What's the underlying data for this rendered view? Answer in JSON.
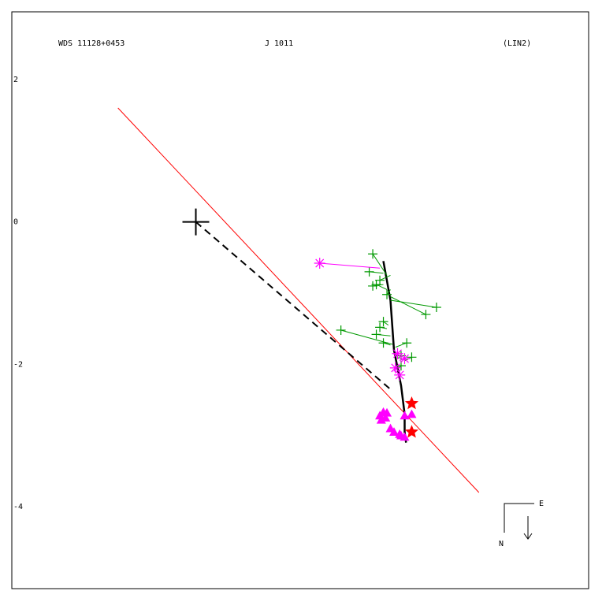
{
  "header": {
    "wds": "WDS 11128+0453",
    "disc": "J  1011",
    "ref": "(LIN2)"
  },
  "compass": {
    "east": "E",
    "north": "N"
  },
  "chart_data": {
    "type": "scatter",
    "xlim": [
      -2.6,
      5.55
    ],
    "ylim": [
      -5.15,
      2.95
    ],
    "yticks": [
      {
        "value": 2,
        "label": "2"
      },
      {
        "value": 0,
        "label": "0"
      },
      {
        "value": -2,
        "label": "-2"
      },
      {
        "value": -4,
        "label": "-4"
      }
    ],
    "primary": [
      0,
      0
    ],
    "colors": {
      "fit_line": "#ff0000",
      "orbit": "#000000",
      "micrometer": "#009900",
      "photographic": "#ff00ff",
      "speckle": "#ff00ff",
      "recent": "#ff0000",
      "frame": "#000000"
    },
    "fit_line": {
      "x": [
        -1.1,
        4.0
      ],
      "y": [
        1.6,
        -3.8
      ]
    },
    "orbit_track": {
      "x": [
        2.65,
        2.75,
        2.8,
        2.9,
        2.95,
        2.95,
        2.97
      ],
      "y": [
        -0.55,
        -1.1,
        -1.8,
        -2.3,
        -2.7,
        -2.95,
        -3.1
      ]
    },
    "node_line": {
      "x": [
        0.0,
        2.75
      ],
      "y": [
        0.0,
        -2.35
      ]
    },
    "micrometer": [
      {
        "x": [
          2.5,
          2.7
        ],
        "y": [
          -0.45,
          -0.75
        ]
      },
      {
        "x": [
          2.45,
          2.65
        ],
        "y": [
          -0.7,
          -0.72
        ]
      },
      {
        "x": [
          2.6,
          2.75
        ],
        "y": [
          -0.82,
          -0.75
        ]
      },
      {
        "x": [
          2.5,
          2.65
        ],
        "y": [
          -0.9,
          -0.88
        ]
      },
      {
        "x": [
          2.55,
          2.7
        ],
        "y": [
          -0.88,
          -0.95
        ]
      },
      {
        "x": [
          2.7,
          2.75
        ],
        "y": [
          -1.02,
          -0.95
        ]
      },
      {
        "x": [
          3.25,
          2.75
        ],
        "y": [
          -1.3,
          -1.05
        ]
      },
      {
        "x": [
          3.4,
          2.75
        ],
        "y": [
          -1.2,
          -1.1
        ]
      },
      {
        "x": [
          2.65,
          2.72
        ],
        "y": [
          -1.4,
          -1.45
        ]
      },
      {
        "x": [
          2.6,
          2.7
        ],
        "y": [
          -1.48,
          -1.5
        ]
      },
      {
        "x": [
          2.55,
          2.75
        ],
        "y": [
          -1.58,
          -1.6
        ]
      },
      {
        "x": [
          2.05,
          2.78
        ],
        "y": [
          -1.52,
          -1.72
        ]
      },
      {
        "x": [
          2.65,
          2.75
        ],
        "y": [
          -1.7,
          -1.73
        ]
      },
      {
        "x": [
          2.98,
          2.82
        ],
        "y": [
          -1.7,
          -1.76
        ]
      },
      {
        "x": [
          2.9,
          2.85
        ],
        "y": [
          -1.88,
          -1.92
        ]
      },
      {
        "x": [
          3.05,
          2.95
        ],
        "y": [
          -1.9,
          -1.95
        ]
      },
      {
        "x": [
          2.9,
          2.85
        ],
        "y": [
          -2.02,
          -2.06
        ]
      }
    ],
    "photographic": [
      {
        "x": [
          1.75,
          2.6
        ],
        "y": [
          -0.58,
          -0.65
        ]
      },
      {
        "x": [
          2.85,
          2.8
        ],
        "y": [
          -1.85,
          -1.87
        ]
      },
      {
        "x": [
          2.95,
          2.88
        ],
        "y": [
          -1.92,
          -1.95
        ]
      },
      {
        "x": [
          2.82,
          2.8
        ],
        "y": [
          -2.05,
          -2.1
        ]
      },
      {
        "x": [
          2.88,
          2.85
        ],
        "y": [
          -2.15,
          -2.13
        ]
      }
    ],
    "speckle": [
      {
        "x": 2.6,
        "y": -2.72
      },
      {
        "x": 2.65,
        "y": -2.67
      },
      {
        "x": 2.7,
        "y": -2.68
      },
      {
        "x": 2.62,
        "y": -2.78
      },
      {
        "x": 2.68,
        "y": -2.75
      },
      {
        "x": 2.95,
        "y": -2.72
      },
      {
        "x": 3.05,
        "y": -2.7
      },
      {
        "x": 2.75,
        "y": -2.9
      },
      {
        "x": 2.8,
        "y": -2.95
      },
      {
        "x": 2.9,
        "y": -3.0
      },
      {
        "x": 2.95,
        "y": -3.02
      },
      {
        "x": 2.88,
        "y": -2.98
      }
    ],
    "recent": [
      {
        "x": 3.05,
        "y": -2.55
      },
      {
        "x": 3.05,
        "y": -2.95
      }
    ]
  }
}
